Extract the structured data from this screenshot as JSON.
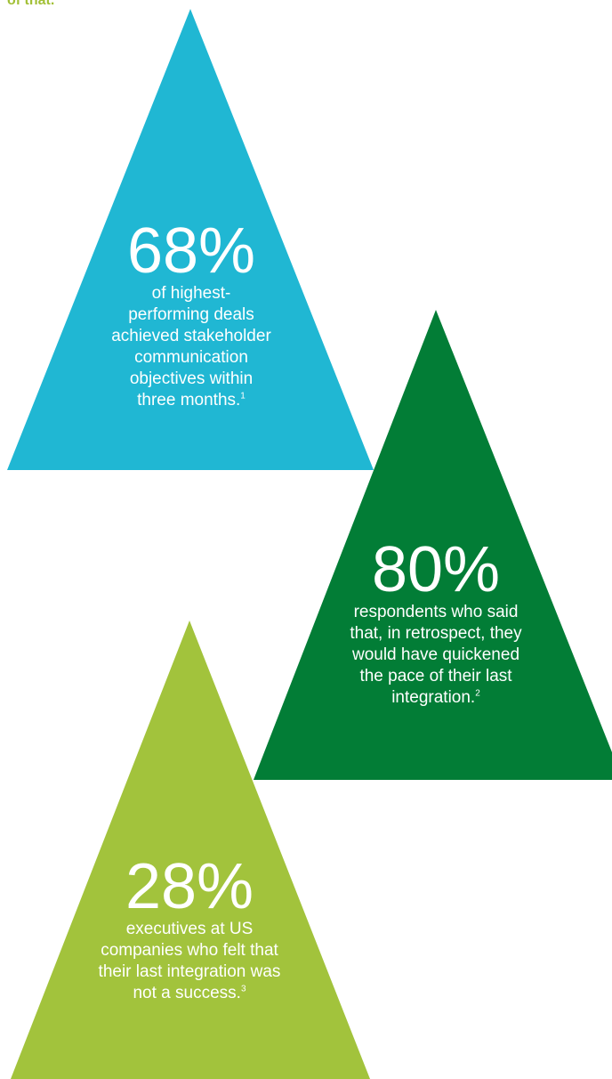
{
  "header": {
    "text": "of that."
  },
  "colors": {
    "header_text": "#a2c037",
    "teal": "#20b7d3",
    "dark_green": "#027d36",
    "lime": "#a2c33c",
    "stat_text": "#ffffff"
  },
  "stats": [
    {
      "value": "68%",
      "description": "of highest-performing deals achieved stakeholder communication objectives within three months.",
      "lines": [
        "of highest-",
        "performing deals",
        "achieved stakeholder",
        "communication",
        "objectives within",
        "three months."
      ],
      "footnote": "1"
    },
    {
      "value": "80%",
      "description": "respondents who said that, in retrospect, they would have quickened the pace of their last integration.",
      "lines": [
        "respondents who said",
        "that, in retrospect, they",
        "would have quickened",
        "the pace of their last",
        "integration."
      ],
      "footnote": "2"
    },
    {
      "value": "28%",
      "description": "executives at US companies who felt that their last integration was not a success.",
      "lines": [
        "executives at US",
        "companies who felt that",
        "their last integration was",
        "not a success."
      ],
      "footnote": "3"
    }
  ]
}
